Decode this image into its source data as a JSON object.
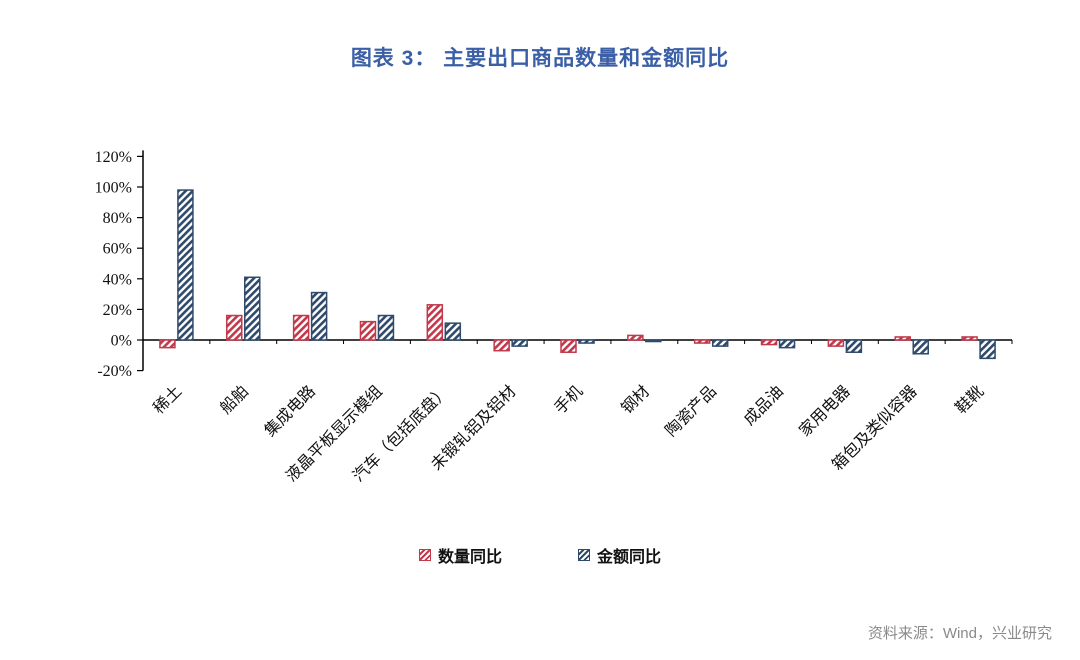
{
  "title": "图表 3：   主要出口商品数量和金额同比",
  "source": "资料来源：Wind，兴业研究",
  "colors": {
    "title": "#3A5FA6",
    "source": "#8A8A8A",
    "axis": "#000000",
    "quantity_series": "#C1394B",
    "amount_series": "#2F4A6B"
  },
  "legend": [
    {
      "label": "数量同比"
    },
    {
      "label": "金额同比"
    }
  ],
  "chart_data": {
    "type": "bar",
    "title": "图表 3： 主要出口商品数量和金额同比",
    "categories": [
      "稀土",
      "船舶",
      "集成电路",
      "液晶平板显示模组",
      "汽车（包括底盘）",
      "未锻轧铝及铝材",
      "手机",
      "钢材",
      "陶瓷产品",
      "成品油",
      "家用电器",
      "箱包及类似容器",
      "鞋靴"
    ],
    "series": [
      {
        "name": "数量同比",
        "color": "#C1394B",
        "values": [
          -5,
          16,
          16,
          12,
          23,
          -7,
          -8,
          3,
          -2,
          -3,
          -4,
          2,
          2
        ]
      },
      {
        "name": "金额同比",
        "color": "#2F4A6B",
        "values": [
          98,
          41,
          31,
          16,
          11,
          -4,
          -2,
          -1,
          -4,
          -5,
          -8,
          -9,
          -12
        ]
      }
    ],
    "xlabel": "",
    "ylabel": "",
    "ylim": [
      -20,
      120
    ],
    "y_ticks": [
      "120%",
      "100%",
      "80%",
      "60%",
      "40%",
      "20%",
      "0%",
      "-20%"
    ],
    "grid": false,
    "legend_position": "bottom",
    "bar_style": "diagonal-hatch"
  }
}
